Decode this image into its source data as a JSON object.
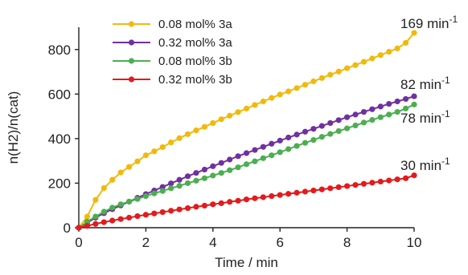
{
  "chart_data": {
    "type": "line",
    "xlabel": "Time / min",
    "ylabel": "n(H2)/n(cat)",
    "xlim": [
      0,
      10
    ],
    "ylim": [
      0,
      900
    ],
    "xticks": [
      0,
      2,
      4,
      6,
      8,
      10
    ],
    "yticks": [
      0,
      200,
      400,
      600,
      800
    ],
    "legend_position": "top-left",
    "grid": false,
    "series": [
      {
        "name": "0.08 mol% 3a",
        "color": "#f2b90c",
        "annotation": "169 min",
        "annotation_sup": "-1",
        "points": [
          [
            0,
            0
          ],
          [
            0.25,
            50
          ],
          [
            0.5,
            125
          ],
          [
            0.75,
            178
          ],
          [
            1,
            215
          ],
          [
            1.25,
            248
          ],
          [
            1.5,
            273
          ],
          [
            1.75,
            298
          ],
          [
            2,
            325
          ],
          [
            2.25,
            343
          ],
          [
            2.5,
            362
          ],
          [
            2.75,
            383
          ],
          [
            3,
            402
          ],
          [
            3.25,
            420
          ],
          [
            3.5,
            437
          ],
          [
            3.75,
            453
          ],
          [
            4,
            470
          ],
          [
            4.25,
            487
          ],
          [
            4.5,
            503
          ],
          [
            4.75,
            519
          ],
          [
            5,
            535
          ],
          [
            5.25,
            551
          ],
          [
            5.5,
            567
          ],
          [
            5.75,
            583
          ],
          [
            6,
            598
          ],
          [
            6.25,
            612
          ],
          [
            6.5,
            627
          ],
          [
            6.75,
            642
          ],
          [
            7,
            657
          ],
          [
            7.25,
            672
          ],
          [
            7.5,
            687
          ],
          [
            7.75,
            701
          ],
          [
            8,
            716
          ],
          [
            8.25,
            730
          ],
          [
            8.5,
            745
          ],
          [
            8.75,
            760
          ],
          [
            9,
            775
          ],
          [
            9.25,
            790
          ],
          [
            9.5,
            805
          ],
          [
            9.75,
            830
          ],
          [
            10,
            875
          ]
        ]
      },
      {
        "name": "0.32 mol% 3a",
        "color": "#7030a0",
        "annotation": "82 min",
        "annotation_sup": "-1",
        "points": [
          [
            0,
            0
          ],
          [
            0.25,
            22
          ],
          [
            0.5,
            45
          ],
          [
            0.75,
            65
          ],
          [
            1,
            83
          ],
          [
            1.25,
            100
          ],
          [
            1.5,
            117
          ],
          [
            1.75,
            134
          ],
          [
            2,
            151
          ],
          [
            2.25,
            167
          ],
          [
            2.5,
            183
          ],
          [
            2.75,
            199
          ],
          [
            3,
            215
          ],
          [
            3.25,
            231
          ],
          [
            3.5,
            246
          ],
          [
            3.75,
            261
          ],
          [
            4,
            276
          ],
          [
            4.25,
            291
          ],
          [
            4.5,
            306
          ],
          [
            4.75,
            321
          ],
          [
            5,
            335
          ],
          [
            5.25,
            349
          ],
          [
            5.5,
            363
          ],
          [
            5.75,
            377
          ],
          [
            6,
            391
          ],
          [
            6.25,
            405
          ],
          [
            6.5,
            418
          ],
          [
            6.75,
            431
          ],
          [
            7,
            444
          ],
          [
            7.25,
            457
          ],
          [
            7.5,
            470
          ],
          [
            7.75,
            483
          ],
          [
            8,
            496
          ],
          [
            8.25,
            508
          ],
          [
            8.5,
            520
          ],
          [
            8.75,
            532
          ],
          [
            9,
            544
          ],
          [
            9.25,
            556
          ],
          [
            9.5,
            567
          ],
          [
            9.75,
            578
          ],
          [
            10,
            590
          ]
        ]
      },
      {
        "name": "0.08 mol% 3b",
        "color": "#4cae50",
        "annotation": "78 min",
        "annotation_sup": "-1",
        "points": [
          [
            0,
            0
          ],
          [
            0.25,
            27
          ],
          [
            0.5,
            50
          ],
          [
            0.75,
            72
          ],
          [
            1,
            90
          ],
          [
            1.25,
            105
          ],
          [
            1.5,
            117
          ],
          [
            1.75,
            129
          ],
          [
            2,
            142
          ],
          [
            2.25,
            154
          ],
          [
            2.5,
            165
          ],
          [
            2.75,
            177
          ],
          [
            3,
            188
          ],
          [
            3.25,
            200
          ],
          [
            3.5,
            211
          ],
          [
            3.75,
            222
          ],
          [
            4,
            234
          ],
          [
            4.25,
            246
          ],
          [
            4.5,
            258
          ],
          [
            4.75,
            271
          ],
          [
            5,
            285
          ],
          [
            5.25,
            298
          ],
          [
            5.5,
            312
          ],
          [
            5.75,
            325
          ],
          [
            6,
            339
          ],
          [
            6.25,
            353
          ],
          [
            6.5,
            367
          ],
          [
            6.75,
            381
          ],
          [
            7,
            394
          ],
          [
            7.25,
            408
          ],
          [
            7.5,
            421
          ],
          [
            7.75,
            434
          ],
          [
            8,
            446
          ],
          [
            8.25,
            459
          ],
          [
            8.5,
            472
          ],
          [
            8.75,
            484
          ],
          [
            9,
            496
          ],
          [
            9.25,
            508
          ],
          [
            9.5,
            520
          ],
          [
            9.75,
            535
          ],
          [
            10,
            553
          ]
        ]
      },
      {
        "name": "0.32 mol% 3b",
        "color": "#e41a1c",
        "annotation": "30 min",
        "annotation_sup": "-1",
        "points": [
          [
            0,
            0
          ],
          [
            0.25,
            8
          ],
          [
            0.5,
            17
          ],
          [
            0.75,
            25
          ],
          [
            1,
            32
          ],
          [
            1.25,
            39
          ],
          [
            1.5,
            45
          ],
          [
            1.75,
            52
          ],
          [
            2,
            58
          ],
          [
            2.25,
            64
          ],
          [
            2.5,
            70
          ],
          [
            2.75,
            76
          ],
          [
            3,
            82
          ],
          [
            3.25,
            88
          ],
          [
            3.5,
            94
          ],
          [
            3.75,
            99
          ],
          [
            4,
            105
          ],
          [
            4.25,
            110
          ],
          [
            4.5,
            116
          ],
          [
            4.75,
            121
          ],
          [
            5,
            127
          ],
          [
            5.25,
            132
          ],
          [
            5.5,
            137
          ],
          [
            5.75,
            142
          ],
          [
            6,
            147
          ],
          [
            6.25,
            152
          ],
          [
            6.5,
            157
          ],
          [
            6.75,
            162
          ],
          [
            7,
            167
          ],
          [
            7.25,
            172
          ],
          [
            7.5,
            177
          ],
          [
            7.75,
            182
          ],
          [
            8,
            187
          ],
          [
            8.25,
            192
          ],
          [
            8.5,
            197
          ],
          [
            8.75,
            202
          ],
          [
            9,
            207
          ],
          [
            9.25,
            212
          ],
          [
            9.5,
            217
          ],
          [
            9.75,
            222
          ],
          [
            10,
            235
          ]
        ]
      }
    ]
  }
}
